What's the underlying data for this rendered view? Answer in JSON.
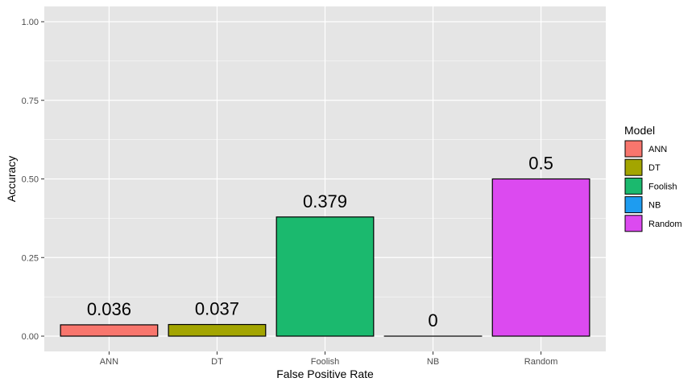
{
  "chart_data": {
    "type": "bar",
    "categories": [
      "ANN",
      "DT",
      "Foolish",
      "NB",
      "Random"
    ],
    "values": [
      0.036,
      0.037,
      0.379,
      0,
      0.5
    ],
    "data_labels": [
      "0.036",
      "0.037",
      "0.379",
      "0",
      "0.5"
    ],
    "xlabel": "False Positive Rate",
    "ylabel": "Accuracy",
    "ylim": [
      0,
      1
    ],
    "yticks": [
      0,
      0.25,
      0.5,
      0.75,
      1
    ],
    "ytick_labels": [
      "0.00",
      "0.25",
      "0.50",
      "0.75",
      "1.00"
    ],
    "grid": true,
    "legend": {
      "title": "Model",
      "placement": "right",
      "entries": [
        "ANN",
        "DT",
        "Foolish",
        "NB",
        "Random"
      ]
    },
    "colors": [
      "#F8766D",
      "#A3A500",
      "#1BB96E",
      "#1E9CF0",
      "#DC4AF0"
    ],
    "panel_background": "#e5e5e5",
    "grid_color": "#ffffff",
    "bar_outline": "#000000"
  }
}
